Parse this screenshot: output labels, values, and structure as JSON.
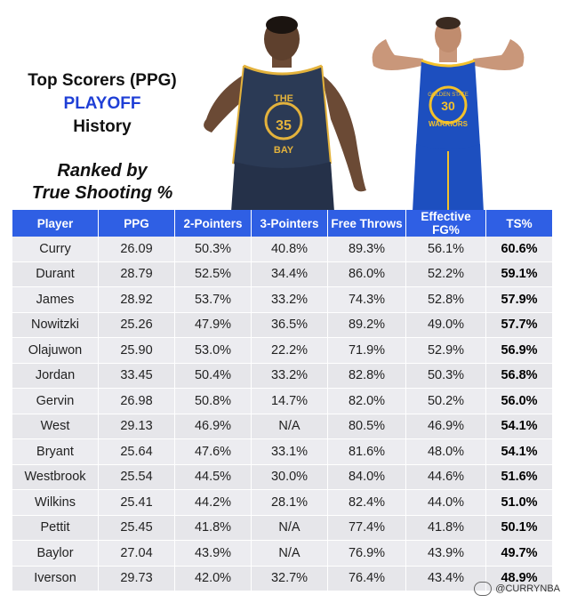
{
  "title": {
    "line1": "Top Scorers (PPG)",
    "line2": "PLAYOFF",
    "line3": "History"
  },
  "subtitle": {
    "line1": "Ranked by",
    "line2": "True Shooting %"
  },
  "colors": {
    "header_blue": "#2f5fe4",
    "title_blue": "#1f3fd6",
    "row_gray": "#e6e6ea"
  },
  "players": [
    {
      "name": "Durant",
      "number": "35",
      "jersey_text": "THE BAY",
      "jersey_color": "#2b3a55"
    },
    {
      "name": "Curry",
      "number": "30",
      "jersey_text": "WARRIORS",
      "jersey_color": "#1d4fbf"
    }
  ],
  "table": {
    "headers": [
      "Player",
      "PPG",
      "2-Pointers",
      "3-Pointers",
      "Free Throws",
      "Effective FG%",
      "TS%"
    ],
    "rows": [
      [
        "Curry",
        "26.09",
        "50.3%",
        "40.8%",
        "89.3%",
        "56.1%",
        "60.6%"
      ],
      [
        "Durant",
        "28.79",
        "52.5%",
        "34.4%",
        "86.0%",
        "52.2%",
        "59.1%"
      ],
      [
        "James",
        "28.92",
        "53.7%",
        "33.2%",
        "74.3%",
        "52.8%",
        "57.9%"
      ],
      [
        "Nowitzki",
        "25.26",
        "47.9%",
        "36.5%",
        "89.2%",
        "49.0%",
        "57.7%"
      ],
      [
        "Olajuwon",
        "25.90",
        "53.0%",
        "22.2%",
        "71.9%",
        "52.9%",
        "56.9%"
      ],
      [
        "Jordan",
        "33.45",
        "50.4%",
        "33.2%",
        "82.8%",
        "50.3%",
        "56.8%"
      ],
      [
        "Gervin",
        "26.98",
        "50.8%",
        "14.7%",
        "82.0%",
        "50.2%",
        "56.0%"
      ],
      [
        "West",
        "29.13",
        "46.9%",
        "N/A",
        "80.5%",
        "46.9%",
        "54.1%"
      ],
      [
        "Bryant",
        "25.64",
        "47.6%",
        "33.1%",
        "81.6%",
        "48.0%",
        "54.1%"
      ],
      [
        "Westbrook",
        "25.54",
        "44.5%",
        "30.0%",
        "84.0%",
        "44.6%",
        "51.6%"
      ],
      [
        "Wilkins",
        "25.41",
        "44.2%",
        "28.1%",
        "82.4%",
        "44.0%",
        "51.0%"
      ],
      [
        "Pettit",
        "25.45",
        "41.8%",
        "N/A",
        "77.4%",
        "41.8%",
        "50.1%"
      ],
      [
        "Baylor",
        "27.04",
        "43.9%",
        "N/A",
        "76.9%",
        "43.9%",
        "49.7%"
      ],
      [
        "Iverson",
        "29.73",
        "42.0%",
        "32.7%",
        "76.4%",
        "43.4%",
        "48.9%"
      ]
    ]
  },
  "watermark": "@CURRYNBA"
}
